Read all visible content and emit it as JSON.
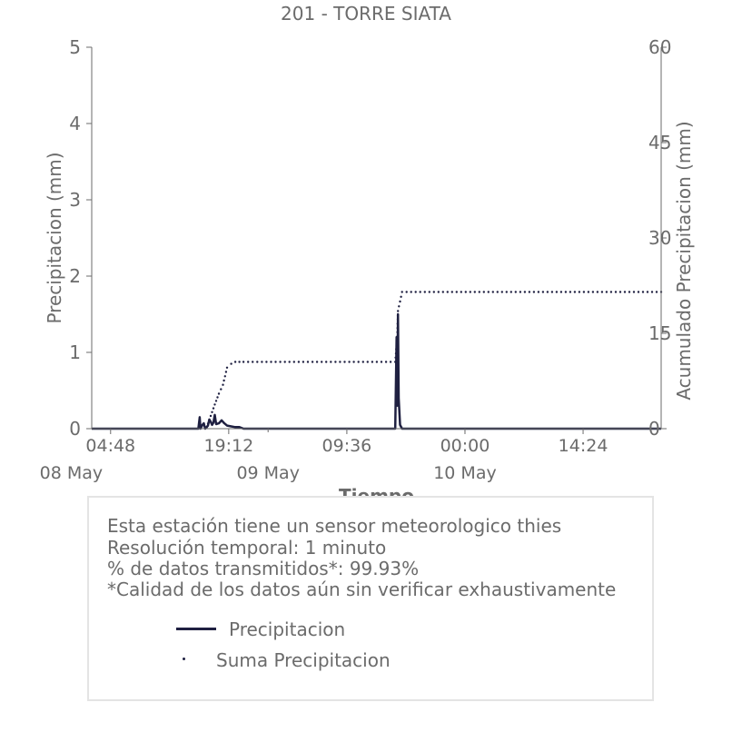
{
  "title": "201 - TORRE SIATA",
  "info": {
    "line1": "Esta estación tiene un sensor meteorologico thies",
    "line2": "Resolución temporal: 1 minuto",
    "line3": "% de datos transmitidos*: 99.93%",
    "line4": "*Calidad de los datos aún sin verificar exhaustivamente"
  },
  "legend": {
    "precip_label": "Precipitacion",
    "sum_label": "Suma Precipitacion"
  },
  "colors": {
    "series": "#1f2041",
    "axis": "#6b6b6b",
    "box_border": "#e4e4e4"
  },
  "chart_data": {
    "type": "line",
    "title": "201 - TORRE SIATA",
    "xlabel": "Tiempo",
    "ylabel": "Precipitacion (mm)",
    "y2label": "Acumulado Precipitacion (mm)",
    "xlim": [
      "2024-05-08 02:30",
      "2024-05-10 23:55"
    ],
    "ylim": [
      0,
      5
    ],
    "y2lim": [
      0,
      60
    ],
    "yticks": [
      "0",
      "1",
      "2",
      "3",
      "4",
      "5"
    ],
    "y2ticks": [
      "0",
      "15",
      "30",
      "45",
      "60"
    ],
    "xticks": [
      {
        "t": "2024-05-08 04:48",
        "label": "04:48"
      },
      {
        "t": "2024-05-08 19:12",
        "label": "19:12"
      },
      {
        "t": "2024-05-09 09:36",
        "label": "09:36"
      },
      {
        "t": "2024-05-10 00:00",
        "label": "00:00"
      },
      {
        "t": "2024-05-10 14:24",
        "label": "14:24"
      }
    ],
    "date_labels": [
      {
        "t": "2024-05-08 00:00",
        "label": "08 May"
      },
      {
        "t": "2024-05-09 00:00",
        "label": "09 May"
      },
      {
        "t": "2024-05-10 00:00",
        "label": "10 May"
      }
    ],
    "series": [
      {
        "name": "Precipitacion",
        "axis": "left",
        "style": "line",
        "points": [
          [
            "2024-05-08 02:30",
            0.0
          ],
          [
            "2024-05-08 15:30",
            0.0
          ],
          [
            "2024-05-08 15:40",
            0.15
          ],
          [
            "2024-05-08 15:45",
            0.0
          ],
          [
            "2024-05-08 16:00",
            0.05
          ],
          [
            "2024-05-08 16:10",
            0.07
          ],
          [
            "2024-05-08 16:20",
            0.0
          ],
          [
            "2024-05-08 16:40",
            0.04
          ],
          [
            "2024-05-08 16:50",
            0.12
          ],
          [
            "2024-05-08 17:00",
            0.09
          ],
          [
            "2024-05-08 17:10",
            0.05
          ],
          [
            "2024-05-08 17:20",
            0.08
          ],
          [
            "2024-05-08 17:30",
            0.18
          ],
          [
            "2024-05-08 17:40",
            0.06
          ],
          [
            "2024-05-08 18:00",
            0.07
          ],
          [
            "2024-05-08 18:20",
            0.11
          ],
          [
            "2024-05-08 18:40",
            0.07
          ],
          [
            "2024-05-08 19:00",
            0.04
          ],
          [
            "2024-05-08 19:30",
            0.03
          ],
          [
            "2024-05-08 20:00",
            0.02
          ],
          [
            "2024-05-08 20:30",
            0.02
          ],
          [
            "2024-05-08 21:00",
            0.0
          ],
          [
            "2024-05-09 15:30",
            0.0
          ],
          [
            "2024-05-09 15:40",
            1.2
          ],
          [
            "2024-05-09 15:45",
            0.3
          ],
          [
            "2024-05-09 15:50",
            1.5
          ],
          [
            "2024-05-09 15:55",
            0.4
          ],
          [
            "2024-05-09 16:05",
            0.05
          ],
          [
            "2024-05-09 16:20",
            0.0
          ],
          [
            "2024-05-10 23:55",
            0.0
          ]
        ]
      },
      {
        "name": "Suma Precipitacion",
        "axis": "right",
        "style": "dotted",
        "points": [
          [
            "2024-05-08 16:30",
            0.2
          ],
          [
            "2024-05-08 17:00",
            2.0
          ],
          [
            "2024-05-08 17:30",
            3.8
          ],
          [
            "2024-05-08 18:00",
            5.5
          ],
          [
            "2024-05-08 18:30",
            6.9
          ],
          [
            "2024-05-08 19:00",
            9.6
          ],
          [
            "2024-05-08 19:30",
            10.2
          ],
          [
            "2024-05-08 20:00",
            10.5
          ],
          [
            "2024-05-08 21:00",
            10.5
          ],
          [
            "2024-05-09 15:30",
            10.5
          ],
          [
            "2024-05-09 15:45",
            14.5
          ],
          [
            "2024-05-09 15:50",
            18.5
          ],
          [
            "2024-05-09 16:20",
            21.5
          ],
          [
            "2024-05-10 23:55",
            21.5
          ]
        ]
      }
    ]
  }
}
